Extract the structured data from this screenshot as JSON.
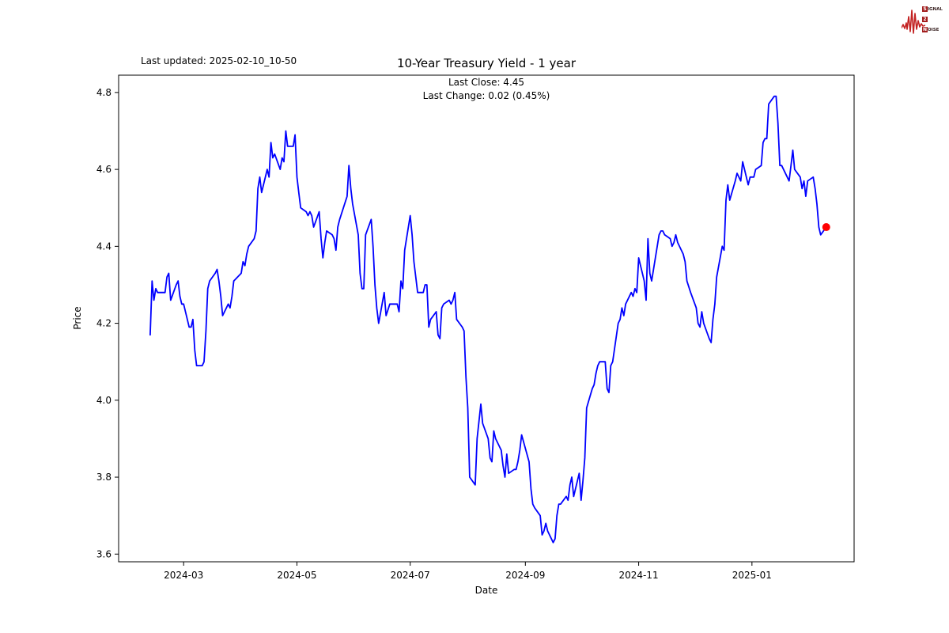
{
  "logo": {
    "rows": [
      {
        "box": "S",
        "rest": "IGNAL"
      },
      {
        "box": "2",
        "rest": ""
      },
      {
        "box": "N",
        "rest": "OISE"
      }
    ]
  },
  "chart": {
    "last_updated": "Last updated: 2025-02-10_10-50"
  },
  "chart_data": {
    "type": "line",
    "title": "10-Year Treasury Yield - 1 year",
    "subtitle_line1": "Last Close: 4.45",
    "subtitle_line2": "Last Change: 0.02 (0.45%)",
    "last_close": 4.45,
    "last_change": 0.02,
    "last_change_pct": "0.45%",
    "xlabel": "Date",
    "ylabel": "Price",
    "grid": false,
    "line_color": "#0000ff",
    "marker_color": "#ff0000",
    "axis_color": "#000000",
    "xlim": [
      "2024-01-26",
      "2025-02-25"
    ],
    "ylim": [
      3.58,
      4.845
    ],
    "x_ticks": [
      {
        "date": "2024-03-01",
        "label": "2024-03"
      },
      {
        "date": "2024-05-01",
        "label": "2024-05"
      },
      {
        "date": "2024-07-01",
        "label": "2024-07"
      },
      {
        "date": "2024-09-01",
        "label": "2024-09"
      },
      {
        "date": "2024-11-01",
        "label": "2024-11"
      },
      {
        "date": "2025-01-01",
        "label": "2025-01"
      }
    ],
    "y_ticks": [
      {
        "value": 3.6,
        "label": "3.6"
      },
      {
        "value": 3.8,
        "label": "3.8"
      },
      {
        "value": 4.0,
        "label": "4.0"
      },
      {
        "value": 4.2,
        "label": "4.2"
      },
      {
        "value": 4.4,
        "label": "4.4"
      },
      {
        "value": 4.6,
        "label": "4.6"
      },
      {
        "value": 4.8,
        "label": "4.8"
      }
    ],
    "last_point": {
      "date": "2025-02-10",
      "value": 4.45
    },
    "series": [
      {
        "name": "10-Year Treasury Yield",
        "color": "#0000ff",
        "points": [
          [
            "2024-02-12",
            4.17
          ],
          [
            "2024-02-13",
            4.31
          ],
          [
            "2024-02-14",
            4.26
          ],
          [
            "2024-02-15",
            4.29
          ],
          [
            "2024-02-16",
            4.28
          ],
          [
            "2024-02-20",
            4.28
          ],
          [
            "2024-02-21",
            4.32
          ],
          [
            "2024-02-22",
            4.33
          ],
          [
            "2024-02-23",
            4.26
          ],
          [
            "2024-02-26",
            4.3
          ],
          [
            "2024-02-27",
            4.31
          ],
          [
            "2024-02-28",
            4.27
          ],
          [
            "2024-02-29",
            4.25
          ],
          [
            "2024-03-01",
            4.25
          ],
          [
            "2024-03-04",
            4.19
          ],
          [
            "2024-03-05",
            4.19
          ],
          [
            "2024-03-06",
            4.21
          ],
          [
            "2024-03-07",
            4.13
          ],
          [
            "2024-03-08",
            4.09
          ],
          [
            "2024-03-11",
            4.09
          ],
          [
            "2024-03-12",
            4.1
          ],
          [
            "2024-03-13",
            4.18
          ],
          [
            "2024-03-14",
            4.29
          ],
          [
            "2024-03-15",
            4.31
          ],
          [
            "2024-03-18",
            4.33
          ],
          [
            "2024-03-19",
            4.34
          ],
          [
            "2024-03-20",
            4.31
          ],
          [
            "2024-03-21",
            4.27
          ],
          [
            "2024-03-22",
            4.22
          ],
          [
            "2024-03-25",
            4.25
          ],
          [
            "2024-03-26",
            4.24
          ],
          [
            "2024-03-27",
            4.27
          ],
          [
            "2024-03-28",
            4.31
          ],
          [
            "2024-04-01",
            4.33
          ],
          [
            "2024-04-02",
            4.36
          ],
          [
            "2024-04-03",
            4.35
          ],
          [
            "2024-04-04",
            4.38
          ],
          [
            "2024-04-05",
            4.4
          ],
          [
            "2024-04-08",
            4.42
          ],
          [
            "2024-04-09",
            4.44
          ],
          [
            "2024-04-10",
            4.55
          ],
          [
            "2024-04-11",
            4.58
          ],
          [
            "2024-04-12",
            4.54
          ],
          [
            "2024-04-15",
            4.6
          ],
          [
            "2024-04-16",
            4.58
          ],
          [
            "2024-04-17",
            4.67
          ],
          [
            "2024-04-18",
            4.63
          ],
          [
            "2024-04-19",
            4.64
          ],
          [
            "2024-04-22",
            4.6
          ],
          [
            "2024-04-23",
            4.63
          ],
          [
            "2024-04-24",
            4.62
          ],
          [
            "2024-04-25",
            4.7
          ],
          [
            "2024-04-26",
            4.66
          ],
          [
            "2024-04-29",
            4.66
          ],
          [
            "2024-04-30",
            4.69
          ],
          [
            "2024-05-01",
            4.58
          ],
          [
            "2024-05-02",
            4.54
          ],
          [
            "2024-05-03",
            4.5
          ],
          [
            "2024-05-06",
            4.49
          ],
          [
            "2024-05-07",
            4.48
          ],
          [
            "2024-05-08",
            4.49
          ],
          [
            "2024-05-09",
            4.48
          ],
          [
            "2024-05-10",
            4.45
          ],
          [
            "2024-05-13",
            4.49
          ],
          [
            "2024-05-14",
            4.42
          ],
          [
            "2024-05-15",
            4.37
          ],
          [
            "2024-05-16",
            4.41
          ],
          [
            "2024-05-17",
            4.44
          ],
          [
            "2024-05-20",
            4.43
          ],
          [
            "2024-05-21",
            4.42
          ],
          [
            "2024-05-22",
            4.39
          ],
          [
            "2024-05-23",
            4.45
          ],
          [
            "2024-05-24",
            4.47
          ],
          [
            "2024-05-28",
            4.53
          ],
          [
            "2024-05-29",
            4.61
          ],
          [
            "2024-05-30",
            4.55
          ],
          [
            "2024-05-31",
            4.51
          ],
          [
            "2024-06-03",
            4.43
          ],
          [
            "2024-06-04",
            4.33
          ],
          [
            "2024-06-05",
            4.29
          ],
          [
            "2024-06-06",
            4.29
          ],
          [
            "2024-06-07",
            4.43
          ],
          [
            "2024-06-10",
            4.47
          ],
          [
            "2024-06-11",
            4.4
          ],
          [
            "2024-06-12",
            4.3
          ],
          [
            "2024-06-13",
            4.24
          ],
          [
            "2024-06-14",
            4.2
          ],
          [
            "2024-06-17",
            4.28
          ],
          [
            "2024-06-18",
            4.22
          ],
          [
            "2024-06-20",
            4.25
          ],
          [
            "2024-06-21",
            4.25
          ],
          [
            "2024-06-24",
            4.25
          ],
          [
            "2024-06-25",
            4.23
          ],
          [
            "2024-06-26",
            4.31
          ],
          [
            "2024-06-27",
            4.29
          ],
          [
            "2024-06-28",
            4.39
          ],
          [
            "2024-07-01",
            4.48
          ],
          [
            "2024-07-02",
            4.43
          ],
          [
            "2024-07-03",
            4.36
          ],
          [
            "2024-07-05",
            4.28
          ],
          [
            "2024-07-08",
            4.28
          ],
          [
            "2024-07-09",
            4.3
          ],
          [
            "2024-07-10",
            4.3
          ],
          [
            "2024-07-11",
            4.19
          ],
          [
            "2024-07-12",
            4.21
          ],
          [
            "2024-07-15",
            4.23
          ],
          [
            "2024-07-16",
            4.17
          ],
          [
            "2024-07-17",
            4.16
          ],
          [
            "2024-07-18",
            4.24
          ],
          [
            "2024-07-19",
            4.25
          ],
          [
            "2024-07-22",
            4.26
          ],
          [
            "2024-07-23",
            4.25
          ],
          [
            "2024-07-24",
            4.26
          ],
          [
            "2024-07-25",
            4.28
          ],
          [
            "2024-07-26",
            4.21
          ],
          [
            "2024-07-29",
            4.19
          ],
          [
            "2024-07-30",
            4.18
          ],
          [
            "2024-07-31",
            4.06
          ],
          [
            "2024-08-01",
            3.98
          ],
          [
            "2024-08-02",
            3.8
          ],
          [
            "2024-08-05",
            3.78
          ],
          [
            "2024-08-06",
            3.9
          ],
          [
            "2024-08-08",
            3.99
          ],
          [
            "2024-08-09",
            3.94
          ],
          [
            "2024-08-12",
            3.9
          ],
          [
            "2024-08-13",
            3.85
          ],
          [
            "2024-08-14",
            3.84
          ],
          [
            "2024-08-15",
            3.92
          ],
          [
            "2024-08-16",
            3.9
          ],
          [
            "2024-08-19",
            3.87
          ],
          [
            "2024-08-20",
            3.83
          ],
          [
            "2024-08-21",
            3.8
          ],
          [
            "2024-08-22",
            3.86
          ],
          [
            "2024-08-23",
            3.81
          ],
          [
            "2024-08-26",
            3.82
          ],
          [
            "2024-08-27",
            3.82
          ],
          [
            "2024-08-28",
            3.84
          ],
          [
            "2024-08-29",
            3.87
          ],
          [
            "2024-08-30",
            3.91
          ],
          [
            "2024-09-03",
            3.84
          ],
          [
            "2024-09-04",
            3.77
          ],
          [
            "2024-09-05",
            3.73
          ],
          [
            "2024-09-06",
            3.72
          ],
          [
            "2024-09-09",
            3.7
          ],
          [
            "2024-09-10",
            3.65
          ],
          [
            "2024-09-11",
            3.66
          ],
          [
            "2024-09-12",
            3.68
          ],
          [
            "2024-09-13",
            3.66
          ],
          [
            "2024-09-16",
            3.63
          ],
          [
            "2024-09-17",
            3.64
          ],
          [
            "2024-09-18",
            3.7
          ],
          [
            "2024-09-19",
            3.73
          ],
          [
            "2024-09-20",
            3.73
          ],
          [
            "2024-09-23",
            3.75
          ],
          [
            "2024-09-24",
            3.74
          ],
          [
            "2024-09-25",
            3.78
          ],
          [
            "2024-09-26",
            3.8
          ],
          [
            "2024-09-27",
            3.75
          ],
          [
            "2024-09-30",
            3.81
          ],
          [
            "2024-10-01",
            3.74
          ],
          [
            "2024-10-02",
            3.79
          ],
          [
            "2024-10-03",
            3.85
          ],
          [
            "2024-10-04",
            3.98
          ],
          [
            "2024-10-07",
            4.03
          ],
          [
            "2024-10-08",
            4.04
          ],
          [
            "2024-10-09",
            4.07
          ],
          [
            "2024-10-10",
            4.09
          ],
          [
            "2024-10-11",
            4.1
          ],
          [
            "2024-10-14",
            4.1
          ],
          [
            "2024-10-15",
            4.03
          ],
          [
            "2024-10-16",
            4.02
          ],
          [
            "2024-10-17",
            4.09
          ],
          [
            "2024-10-18",
            4.1
          ],
          [
            "2024-10-21",
            4.2
          ],
          [
            "2024-10-22",
            4.21
          ],
          [
            "2024-10-23",
            4.24
          ],
          [
            "2024-10-24",
            4.22
          ],
          [
            "2024-10-25",
            4.25
          ],
          [
            "2024-10-28",
            4.28
          ],
          [
            "2024-10-29",
            4.27
          ],
          [
            "2024-10-30",
            4.29
          ],
          [
            "2024-10-31",
            4.28
          ],
          [
            "2024-11-01",
            4.37
          ],
          [
            "2024-11-04",
            4.31
          ],
          [
            "2024-11-05",
            4.26
          ],
          [
            "2024-11-06",
            4.42
          ],
          [
            "2024-11-07",
            4.33
          ],
          [
            "2024-11-08",
            4.31
          ],
          [
            "2024-11-12",
            4.43
          ],
          [
            "2024-11-13",
            4.44
          ],
          [
            "2024-11-14",
            4.44
          ],
          [
            "2024-11-15",
            4.43
          ],
          [
            "2024-11-18",
            4.42
          ],
          [
            "2024-11-19",
            4.4
          ],
          [
            "2024-11-20",
            4.41
          ],
          [
            "2024-11-21",
            4.43
          ],
          [
            "2024-11-22",
            4.41
          ],
          [
            "2024-11-25",
            4.38
          ],
          [
            "2024-11-26",
            4.36
          ],
          [
            "2024-11-27",
            4.31
          ],
          [
            "2024-11-29",
            4.28
          ],
          [
            "2024-12-02",
            4.24
          ],
          [
            "2024-12-03",
            4.2
          ],
          [
            "2024-12-04",
            4.19
          ],
          [
            "2024-12-05",
            4.23
          ],
          [
            "2024-12-06",
            4.2
          ],
          [
            "2024-12-09",
            4.16
          ],
          [
            "2024-12-10",
            4.15
          ],
          [
            "2024-12-11",
            4.21
          ],
          [
            "2024-12-12",
            4.25
          ],
          [
            "2024-12-13",
            4.32
          ],
          [
            "2024-12-16",
            4.4
          ],
          [
            "2024-12-17",
            4.39
          ],
          [
            "2024-12-18",
            4.52
          ],
          [
            "2024-12-19",
            4.56
          ],
          [
            "2024-12-20",
            4.52
          ],
          [
            "2024-12-23",
            4.57
          ],
          [
            "2024-12-24",
            4.59
          ],
          [
            "2024-12-26",
            4.57
          ],
          [
            "2024-12-27",
            4.62
          ],
          [
            "2024-12-30",
            4.56
          ],
          [
            "2024-12-31",
            4.58
          ],
          [
            "2025-01-02",
            4.58
          ],
          [
            "2025-01-03",
            4.6
          ],
          [
            "2025-01-06",
            4.61
          ],
          [
            "2025-01-07",
            4.67
          ],
          [
            "2025-01-08",
            4.68
          ],
          [
            "2025-01-09",
            4.68
          ],
          [
            "2025-01-10",
            4.77
          ],
          [
            "2025-01-13",
            4.79
          ],
          [
            "2025-01-14",
            4.79
          ],
          [
            "2025-01-15",
            4.72
          ],
          [
            "2025-01-16",
            4.61
          ],
          [
            "2025-01-17",
            4.61
          ],
          [
            "2025-01-21",
            4.57
          ],
          [
            "2025-01-22",
            4.61
          ],
          [
            "2025-01-23",
            4.65
          ],
          [
            "2025-01-24",
            4.6
          ],
          [
            "2025-01-27",
            4.58
          ],
          [
            "2025-01-28",
            4.55
          ],
          [
            "2025-01-29",
            4.57
          ],
          [
            "2025-01-30",
            4.53
          ],
          [
            "2025-01-31",
            4.57
          ],
          [
            "2025-02-03",
            4.58
          ],
          [
            "2025-02-04",
            4.55
          ],
          [
            "2025-02-05",
            4.51
          ],
          [
            "2025-02-06",
            4.45
          ],
          [
            "2025-02-07",
            4.43
          ],
          [
            "2025-02-10",
            4.45
          ]
        ]
      }
    ]
  }
}
